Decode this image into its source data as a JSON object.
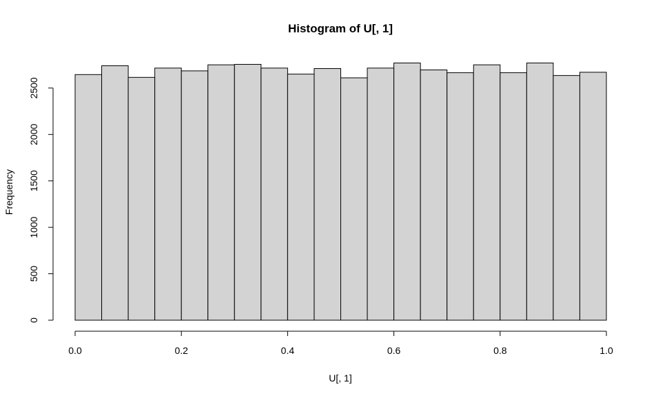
{
  "chart_data": {
    "type": "bar",
    "title": "Histogram of U[, 1]",
    "xlabel": "U[, 1]",
    "ylabel": "Frequency",
    "bins": [
      [
        0.0,
        0.05
      ],
      [
        0.05,
        0.1
      ],
      [
        0.1,
        0.15
      ],
      [
        0.15,
        0.2
      ],
      [
        0.2,
        0.25
      ],
      [
        0.25,
        0.3
      ],
      [
        0.3,
        0.35
      ],
      [
        0.35,
        0.4
      ],
      [
        0.4,
        0.45
      ],
      [
        0.45,
        0.5
      ],
      [
        0.5,
        0.55
      ],
      [
        0.55,
        0.6
      ],
      [
        0.6,
        0.65
      ],
      [
        0.65,
        0.7
      ],
      [
        0.7,
        0.75
      ],
      [
        0.75,
        0.8
      ],
      [
        0.8,
        0.85
      ],
      [
        0.85,
        0.9
      ],
      [
        0.9,
        0.95
      ],
      [
        0.95,
        1.0
      ]
    ],
    "values": [
      2645,
      2740,
      2615,
      2715,
      2685,
      2750,
      2755,
      2715,
      2650,
      2710,
      2610,
      2715,
      2770,
      2695,
      2665,
      2750,
      2665,
      2770,
      2635,
      2670
    ],
    "xlim": [
      0.0,
      1.0
    ],
    "ylim": [
      0,
      2600
    ],
    "x_ticks": [
      0.0,
      0.2,
      0.4,
      0.6,
      0.8,
      1.0
    ],
    "x_tick_labels": [
      "0.0",
      "0.2",
      "0.4",
      "0.6",
      "0.8",
      "1.0"
    ],
    "y_ticks": [
      0,
      500,
      1000,
      1500,
      2000,
      2500
    ],
    "y_tick_labels": [
      "0",
      "500",
      "1000",
      "1500",
      "2000",
      "2500"
    ],
    "grid": false,
    "bar_color": "#d3d3d3",
    "edge_color": "#000000"
  }
}
